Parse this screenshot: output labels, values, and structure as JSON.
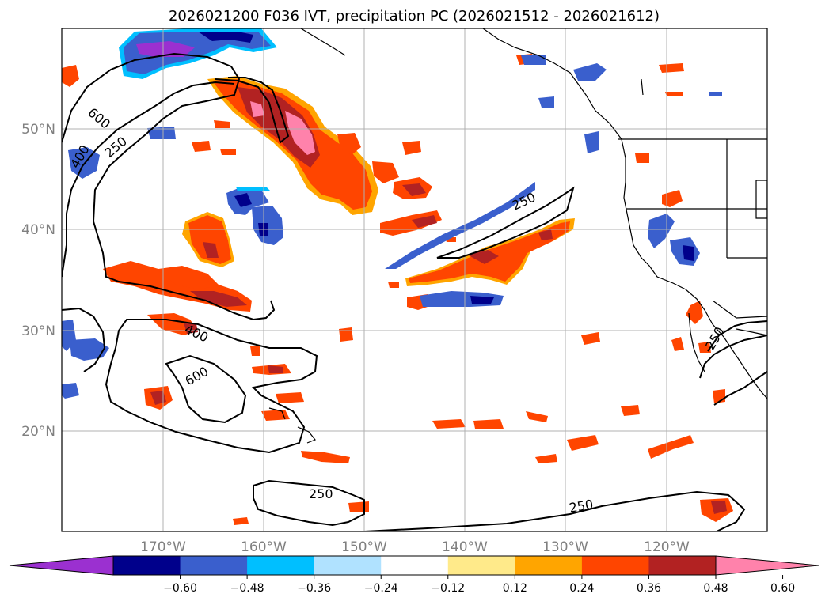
{
  "title": "2026021200 F036 IVT, precipitation PC (2026021512 - 2026021612)",
  "map": {
    "lon_labels": [
      "170°W",
      "160°W",
      "150°W",
      "140°W",
      "130°W",
      "120°W"
    ],
    "lat_labels": [
      "50°N",
      "40°N",
      "30°N",
      "20°N"
    ],
    "gridlines": true,
    "contour_labels": [
      "600",
      "400",
      "250",
      "250",
      "400",
      "600",
      "250",
      "250",
      "250"
    ]
  },
  "colorbar": {
    "tick_labels": [
      "−0.60",
      "−0.48",
      "−0.36",
      "−0.24",
      "−0.12",
      "0.12",
      "0.24",
      "0.36",
      "0.48",
      "0.60"
    ],
    "colors": [
      "#9b30d0",
      "#00008b",
      "#3a5fcd",
      "#00bfff",
      "#b0e2ff",
      "#ffffff",
      "#ffea8a",
      "#ffa500",
      "#ff4500",
      "#b22222",
      "#ff82ab"
    ],
    "extend": "both"
  }
}
